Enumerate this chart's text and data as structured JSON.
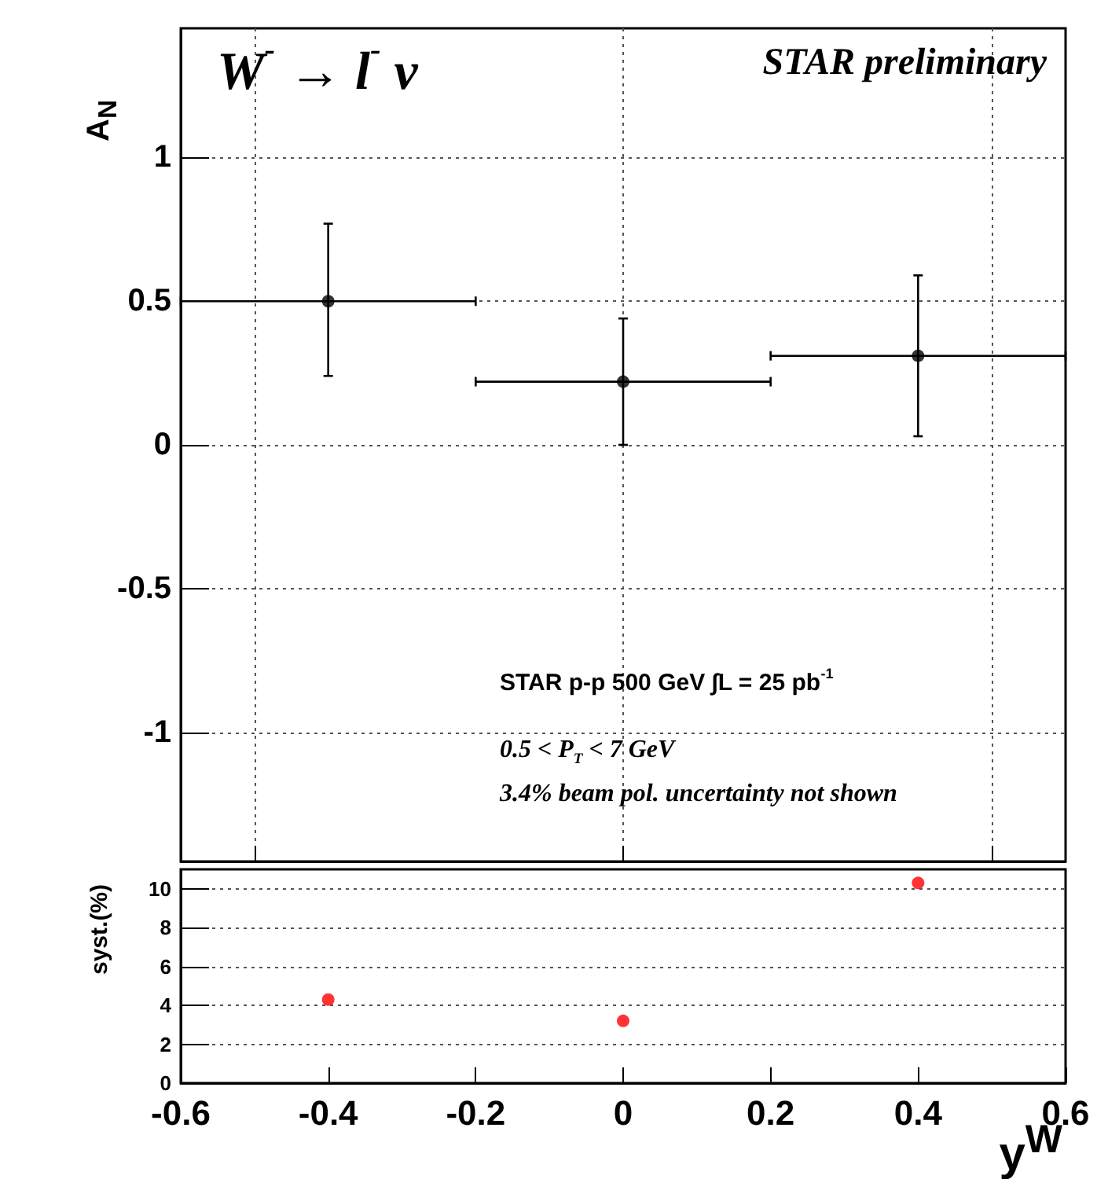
{
  "chart_data": [
    {
      "type": "scatter",
      "ylabel": "A$_{N}$",
      "x": [
        -0.4,
        0,
        0.4
      ],
      "series": [
        {
          "color": "#000000",
          "values": [
            0.5,
            0.22,
            0.31
          ],
          "errors": [
            [
              0.24,
              0.77
            ],
            [
              0.0,
              0.44
            ],
            [
              0.03,
              0.59
            ]
          ],
          "xerrors": [
            [
              -0.6,
              -0.2
            ],
            [
              -0.2,
              0.2
            ],
            [
              0.2,
              0.6
            ]
          ]
        }
      ],
      "xlim": [
        -0.6,
        0.6
      ],
      "xticks": [
        {
          "value": -0.5,
          "label": null
        },
        {
          "value": 0,
          "label": null
        },
        {
          "value": 0.5,
          "label": null
        }
      ],
      "ylim": [
        -1.45,
        1.45
      ],
      "yticks": [
        -1,
        -0.5,
        0,
        0.5,
        1
      ],
      "tick_labels": "y",
      "grid": true,
      "marker": "circle",
      "annotations": [
        "W$^{-}$ → l$^{-}$ ν",
        "STAR preliminary",
        "STAR p-p 500 GeV ∫L = 25 pb$^{-1}$",
        "0.5 < P$_{T}$ < 7 GeV",
        "3.4% beam pol. uncertainty not shown"
      ]
    },
    {
      "type": "scatter",
      "ylabel": "syst.(%)",
      "xlabel": "y$^{W}$",
      "x": [
        -0.4,
        0,
        0.4
      ],
      "series": [
        {
          "color": "#ff0000",
          "values": [
            4.3,
            3.2,
            10.3
          ]
        }
      ],
      "xlim": [
        -0.6,
        0.6
      ],
      "xticks": [
        -0.6,
        -0.4,
        -0.2,
        0,
        0.2,
        0.4,
        0.6
      ],
      "ylim": [
        0,
        11
      ],
      "yticks": [
        0,
        2,
        4,
        6,
        8,
        10
      ],
      "grid": "y",
      "marker": "circle"
    }
  ]
}
